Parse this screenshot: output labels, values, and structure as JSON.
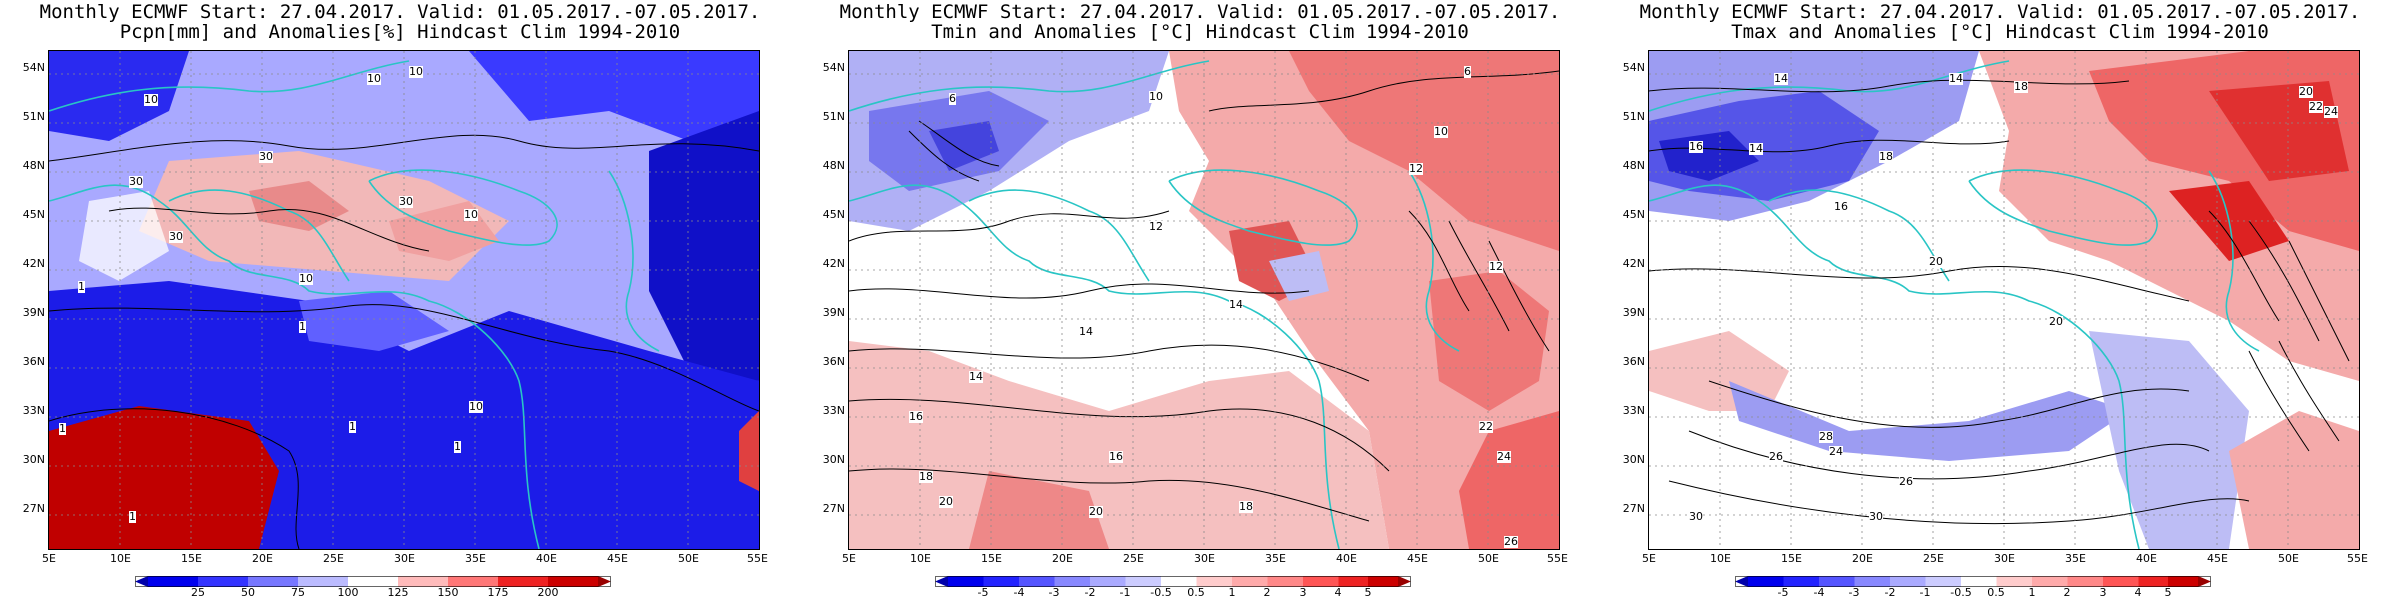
{
  "panels": [
    {
      "title1": "Monthly ECMWF Start: 27.04.2017. Valid: 01.05.2017.-07.05.2017.",
      "title2": "Pcpn[mm] and Anomalies[%] Hindcast Clim 1994-2010",
      "colorbar_labels": [
        "25",
        "50",
        "75",
        "100",
        "125",
        "150",
        "175",
        "200"
      ],
      "contour_labels": [
        "10",
        "30",
        "1"
      ]
    },
    {
      "title1": "Monthly ECMWF Start: 27.04.2017. Valid: 01.05.2017.-07.05.2017.",
      "title2": "Tmin and Anomalies [°C] Hindcast Clim 1994-2010",
      "colorbar_labels": [
        "-5",
        "-4",
        "-3",
        "-2",
        "-1",
        "-0.5",
        "0.5",
        "1",
        "2",
        "3",
        "4",
        "5"
      ],
      "contour_labels": [
        "6",
        "10",
        "12",
        "14",
        "16",
        "18",
        "20",
        "22",
        "24",
        "26"
      ]
    },
    {
      "title1": "Monthly ECMWF Start: 27.04.2017. Valid: 01.05.2017.-07.05.2017.",
      "title2": "Tmax and Anomalies [°C] Hindcast Clim 1994-2010",
      "colorbar_labels": [
        "-5",
        "-4",
        "-3",
        "-2",
        "-1",
        "-0.5",
        "0.5",
        "1",
        "2",
        "3",
        "4",
        "5"
      ],
      "contour_labels": [
        "14",
        "16",
        "18",
        "20",
        "22",
        "24",
        "26",
        "28",
        "30"
      ]
    }
  ],
  "axes": {
    "lat_labels": [
      "54N",
      "51N",
      "48N",
      "45N",
      "42N",
      "39N",
      "36N",
      "33N",
      "30N",
      "27N"
    ],
    "lon_labels": [
      "5E",
      "10E",
      "15E",
      "20E",
      "25E",
      "30E",
      "35E",
      "40E",
      "45E",
      "50E",
      "55E"
    ]
  },
  "colors": {
    "coast": "#29c5c5",
    "anom_blue_dark": "#0000cc",
    "anom_blue_light": "#ccccff",
    "anom_red_light": "#ffcccc",
    "anom_red_dark": "#cc0000"
  }
}
